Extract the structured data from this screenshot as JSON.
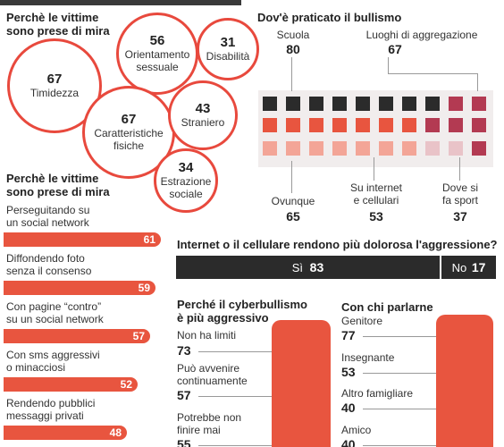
{
  "victims": {
    "title_line1": "Perchè le vittime",
    "title_line2": "sono prese di mira",
    "reasons": [
      {
        "value": "67",
        "label1": "Timidezza",
        "label2": ""
      },
      {
        "value": "56",
        "label1": "Orientamento",
        "label2": "sessuale"
      },
      {
        "value": "31",
        "label1": "Disabilità",
        "label2": ""
      },
      {
        "value": "67",
        "label1": "Caratteristiche",
        "label2": "fisiche"
      },
      {
        "value": "43",
        "label1": "Straniero",
        "label2": ""
      },
      {
        "value": "34",
        "label1": "Estrazione",
        "label2": "sociale"
      }
    ]
  },
  "methods": {
    "title_line1": "Perchè le vittime",
    "title_line2": "sono prese di mira",
    "items": [
      {
        "line1": "Perseguitando su",
        "line2": "un social network",
        "value": 61
      },
      {
        "line1": "Diffondendo foto",
        "line2": "senza il consenso",
        "value": 59
      },
      {
        "line1": "Con pagine “contro”",
        "line2": "su un social network",
        "value": 57
      },
      {
        "line1": "Con sms aggressivi",
        "line2": "o minacciosi",
        "value": 52
      },
      {
        "line1": "Rendendo pubblici",
        "line2": "messaggi privati",
        "value": 48
      }
    ]
  },
  "where": {
    "title": "Dov'è praticato il bullismo",
    "places": [
      {
        "label1": "Scuola",
        "label2": "",
        "value": "80"
      },
      {
        "label1": "Luoghi di aggregazione",
        "label2": "",
        "value": "67"
      },
      {
        "label1": "Ovunque",
        "label2": "",
        "value": "65"
      },
      {
        "label1": "Su internet",
        "label2": "e cellulari",
        "value": "53"
      },
      {
        "label1": "Dove si",
        "label2": "fa sport",
        "value": "37"
      }
    ],
    "colors": {
      "dark": "#2b2b2b",
      "red": "#e8553f",
      "light": "#f3a597",
      "maroon": "#b33a52",
      "pink": "#e9c3c8"
    }
  },
  "internet": {
    "question": "Internet o il cellulare rendono più dolorosa l'aggressione?",
    "yes_label": "Sì",
    "yes_value": 83,
    "no_label": "No",
    "no_value": 17
  },
  "cyber": {
    "title_line1": "Perché il cyberbullismo",
    "title_line2": "è più aggressivo",
    "items": [
      {
        "line1": "Non ha limiti",
        "line2": "",
        "value": "73"
      },
      {
        "line1": "Può avvenire",
        "line2": "continuamente",
        "value": "57"
      },
      {
        "line1": "Potrebbe non",
        "line2": "finire mai",
        "value": "55"
      }
    ]
  },
  "talk": {
    "title": "Con chi parlarne",
    "items": [
      {
        "label": "Genitore",
        "value": "77"
      },
      {
        "label": "Insegnante",
        "value": "53"
      },
      {
        "label": "Altro famigliare",
        "value": "40"
      },
      {
        "label": "Amico",
        "value": "40"
      }
    ]
  },
  "chart_data": [
    {
      "type": "bubble",
      "categories": [
        "Timidezza",
        "Orientamento sessuale",
        "Disabilità",
        "Caratteristiche fisiche",
        "Straniero",
        "Estrazione sociale"
      ],
      "values": [
        67,
        56,
        31,
        67,
        43,
        34
      ]
    },
    {
      "type": "bar",
      "orientation": "horizontal",
      "categories": [
        "Perseguitando su un social network",
        "Diffondendo foto senza il consenso",
        "Con pagine “contro” su un social network",
        "Con sms aggressivi o minacciosi",
        "Rendendo pubblici messaggi privati"
      ],
      "values": [
        61,
        59,
        57,
        52,
        48
      ]
    },
    {
      "type": "table",
      "categories": [
        "Scuola",
        "Luoghi di aggregazione",
        "Ovunque",
        "Su internet e cellulari",
        "Dove si fa sport"
      ],
      "values": [
        80,
        67,
        65,
        53,
        37
      ]
    },
    {
      "type": "bar",
      "orientation": "horizontal",
      "stacked": true,
      "categories": [
        "Sì",
        "No"
      ],
      "values": [
        83,
        17
      ]
    },
    {
      "type": "bar",
      "categories": [
        "Non ha limiti",
        "Può avvenire continuamente",
        "Potrebbe non finire mai"
      ],
      "values": [
        73,
        57,
        55
      ]
    },
    {
      "type": "bar",
      "categories": [
        "Genitore",
        "Insegnante",
        "Altro famigliare",
        "Amico"
      ],
      "values": [
        77,
        53,
        40,
        40
      ]
    }
  ]
}
